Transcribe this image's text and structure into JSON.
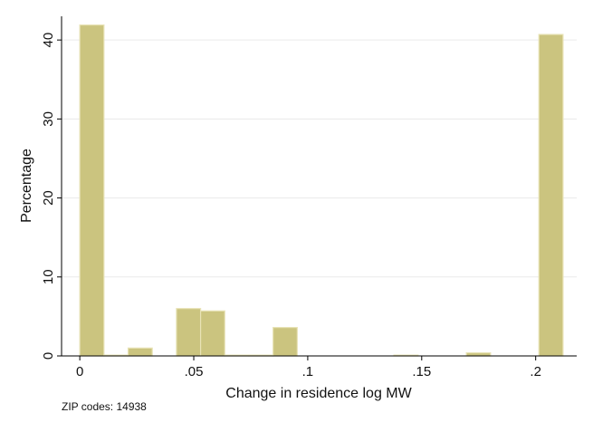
{
  "chart_data": {
    "type": "bar",
    "subtype": "histogram",
    "xlabel": "Change in residence log MW",
    "ylabel": "Percentage",
    "note": "ZIP codes: 14938",
    "xlim": [
      -0.008,
      0.218
    ],
    "ylim": [
      0,
      43
    ],
    "x_ticks": [
      {
        "value": 0,
        "label": "0"
      },
      {
        "value": 0.05,
        "label": ".05"
      },
      {
        "value": 0.1,
        "label": ".1"
      },
      {
        "value": 0.15,
        "label": ".15"
      },
      {
        "value": 0.2,
        "label": ".2"
      }
    ],
    "y_ticks": [
      {
        "value": 0,
        "label": "0"
      },
      {
        "value": 10,
        "label": "10"
      },
      {
        "value": 20,
        "label": "20"
      },
      {
        "value": 30,
        "label": "30"
      },
      {
        "value": 40,
        "label": "40"
      }
    ],
    "grid": true,
    "bar_color": "#cbc47f",
    "bar_edge_color": "#e8e3b6",
    "bins": [
      {
        "start": 0.0,
        "end": 0.0106,
        "value": 41.9
      },
      {
        "start": 0.0106,
        "end": 0.0212,
        "value": 0.1
      },
      {
        "start": 0.0212,
        "end": 0.0318,
        "value": 1.0
      },
      {
        "start": 0.0424,
        "end": 0.053,
        "value": 6.0
      },
      {
        "start": 0.053,
        "end": 0.0636,
        "value": 5.7
      },
      {
        "start": 0.0636,
        "end": 0.0742,
        "value": 0.1
      },
      {
        "start": 0.0742,
        "end": 0.0848,
        "value": 0.1
      },
      {
        "start": 0.0848,
        "end": 0.0954,
        "value": 3.6
      },
      {
        "start": 0.1378,
        "end": 0.1484,
        "value": 0.1
      },
      {
        "start": 0.1696,
        "end": 0.1802,
        "value": 0.4
      },
      {
        "start": 0.2014,
        "end": 0.212,
        "value": 40.7
      }
    ]
  }
}
